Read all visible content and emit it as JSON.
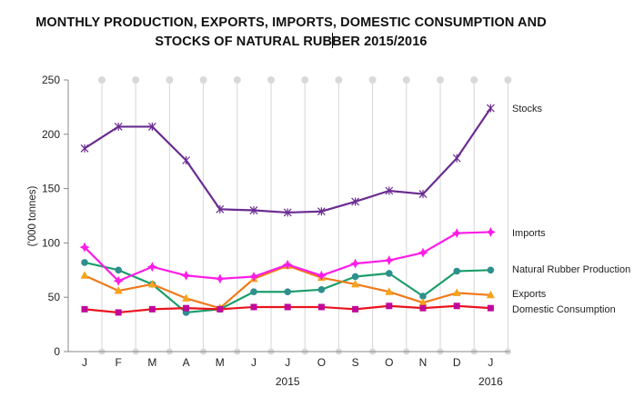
{
  "chart_data": {
    "type": "line",
    "title_line1": "MONTHLY PRODUCTION, EXPORTS, IMPORTS, DOMESTIC CONSUMPTION AND",
    "title_line2_a": "STOCKS OF NATURAL RUB",
    "title_line2_b": "BER 2015/2016",
    "xlabel": "",
    "ylabel": "('000 tonnes)",
    "ylim": [
      0,
      250
    ],
    "yticks": [
      0,
      50,
      100,
      150,
      200,
      250
    ],
    "categories": [
      "J",
      "F",
      "M",
      "A",
      "M",
      "J",
      "J",
      "O",
      "S",
      "O",
      "N",
      "D",
      "J"
    ],
    "year_labels": [
      {
        "label": "2015",
        "under_category_index": 6
      },
      {
        "label": "2016",
        "under_category_index": 12
      }
    ],
    "grid": "vertical",
    "legend": "right, labels at line ends",
    "series": [
      {
        "name": "Stocks",
        "color": "#6a2c91",
        "marker": "asterisk",
        "marker_color": "#6a2c91",
        "values": [
          187,
          207,
          207,
          176,
          131,
          130,
          128,
          129,
          138,
          148,
          145,
          178,
          224
        ]
      },
      {
        "name": "Imports",
        "color": "#ff1ce8",
        "marker": "star4",
        "marker_color": "#ff1ce8",
        "values": [
          96,
          65,
          78,
          70,
          67,
          69,
          80,
          70,
          81,
          84,
          91,
          109,
          110
        ]
      },
      {
        "name": "Natural Rubber Production",
        "color": "#1c9e6a",
        "marker": "circle",
        "marker_color": "#2e8f8f",
        "values": [
          82,
          75,
          62,
          36,
          39,
          55,
          55,
          57,
          69,
          72,
          51,
          74,
          75
        ]
      },
      {
        "name": "Exports",
        "color": "#f07a1a",
        "marker": "triangle",
        "marker_color": "#f5a31a",
        "values": [
          70,
          56,
          62,
          49,
          40,
          67,
          79,
          68,
          62,
          55,
          45,
          54,
          52
        ]
      },
      {
        "name": "Domestic Consumption",
        "color": "#e8141e",
        "marker": "square",
        "marker_color": "#c0089a",
        "values": [
          39,
          36,
          39,
          40,
          39,
          41,
          41,
          41,
          39,
          42,
          40,
          42,
          40
        ]
      }
    ],
    "legend_entries": [
      {
        "label": "Stocks",
        "series_index": 0
      },
      {
        "label": "Imports",
        "series_index": 1
      },
      {
        "label": "Natural Rubber Production",
        "series_index": 2
      },
      {
        "label": "Exports",
        "series_index": 3
      },
      {
        "label": "Domestic Consumption",
        "series_index": 4
      }
    ]
  }
}
